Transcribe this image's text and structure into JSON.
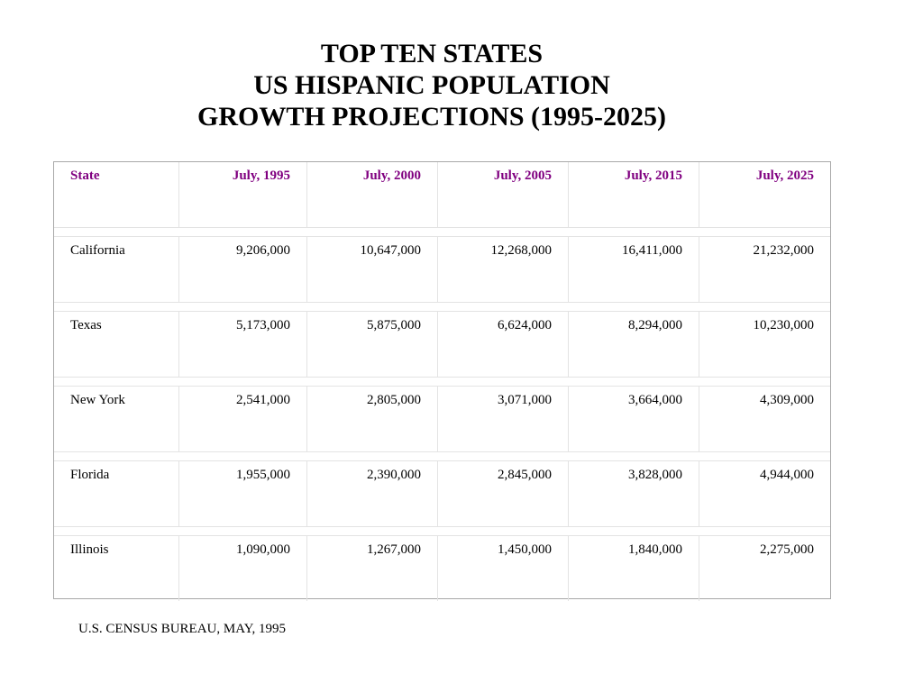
{
  "title": {
    "line1": "TOP TEN STATES",
    "line2": "US HISPANIC POPULATION",
    "line3": "GROWTH PROJECTIONS (1995-2025)"
  },
  "table": {
    "headers": [
      "State",
      "July, 1995",
      "July, 2000",
      "July, 2005",
      "July, 2015",
      "July, 2025"
    ],
    "rows": [
      [
        "California",
        "9,206,000",
        "10,647,000",
        "12,268,000",
        "16,411,000",
        "21,232,000"
      ],
      [
        "Texas",
        "5,173,000",
        "5,875,000",
        "6,624,000",
        "8,294,000",
        "10,230,000"
      ],
      [
        "New York",
        "2,541,000",
        "2,805,000",
        "3,071,000",
        "3,664,000",
        "4,309,000"
      ],
      [
        "Florida",
        "1,955,000",
        "2,390,000",
        "2,845,000",
        "3,828,000",
        "4,944,000"
      ],
      [
        "Illinois",
        "1,090,000",
        "1,267,000",
        "1,450,000",
        "1,840,000",
        "2,275,000"
      ]
    ]
  },
  "source": "U.S. CENSUS BUREAU, MAY, 1995",
  "colors": {
    "header_text": "#800080",
    "border": "#a8a8a8"
  }
}
